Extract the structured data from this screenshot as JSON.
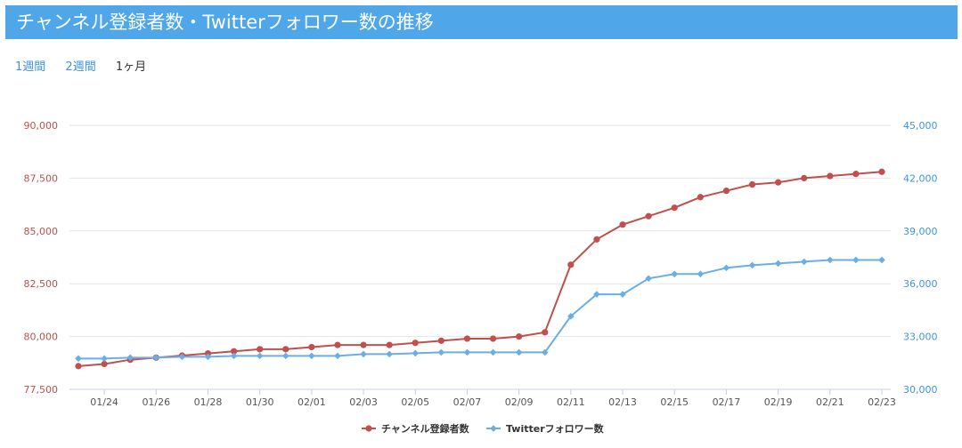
{
  "header": {
    "title": "チャンネル登録者数・Twitterフォロワー数の推移"
  },
  "tabs": [
    {
      "label": "1週間",
      "active": false
    },
    {
      "label": "2週間",
      "active": false
    },
    {
      "label": "1ヶ月",
      "active": true
    }
  ],
  "colors": {
    "header_bg": "#4fa7ea",
    "subscribers": "#c0504d",
    "followers": "#6aaee6",
    "link": "#3f95de"
  },
  "chart_data": {
    "type": "line",
    "x": [
      "01/23",
      "01/24",
      "01/25",
      "01/26",
      "01/27",
      "01/28",
      "01/29",
      "01/30",
      "01/31",
      "02/01",
      "02/02",
      "02/03",
      "02/04",
      "02/05",
      "02/06",
      "02/07",
      "02/08",
      "02/09",
      "02/10",
      "02/11",
      "02/12",
      "02/13",
      "02/14",
      "02/15",
      "02/16",
      "02/17",
      "02/18",
      "02/19",
      "02/20",
      "02/21",
      "02/22",
      "02/23"
    ],
    "x_tick_labels": [
      "01/24",
      "01/26",
      "01/28",
      "01/30",
      "02/01",
      "02/03",
      "02/05",
      "02/07",
      "02/09",
      "02/11",
      "02/13",
      "02/15",
      "02/17",
      "02/19",
      "02/21",
      "02/23"
    ],
    "series": [
      {
        "name": "チャンネル登録者数",
        "axis": "left",
        "marker": "circle",
        "color": "#c0504d",
        "values": [
          78600,
          78700,
          78900,
          79000,
          79100,
          79200,
          79300,
          79400,
          79400,
          79500,
          79600,
          79600,
          79600,
          79700,
          79800,
          79900,
          79900,
          80000,
          80200,
          83400,
          84600,
          85300,
          85700,
          86100,
          86600,
          86900,
          87200,
          87300,
          87500,
          87600,
          87700,
          87800
        ]
      },
      {
        "name": "Twitterフォロワー数",
        "axis": "right",
        "marker": "diamond",
        "color": "#6aaee6",
        "values": [
          31750,
          31750,
          31800,
          31800,
          31850,
          31850,
          31900,
          31900,
          31900,
          31900,
          31900,
          32000,
          32000,
          32050,
          32100,
          32100,
          32100,
          32100,
          32100,
          34150,
          35400,
          35400,
          36300,
          36550,
          36550,
          36900,
          37050,
          37150,
          37250,
          37350,
          37350,
          37350
        ]
      }
    ],
    "y_left": {
      "range": [
        77500,
        90000
      ],
      "ticks": [
        "77,500",
        "80,000",
        "82,500",
        "85,000",
        "87,500",
        "90,000"
      ]
    },
    "y_right": {
      "range": [
        30000,
        45000
      ],
      "ticks": [
        "30,000",
        "33,000",
        "36,000",
        "39,000",
        "42,000",
        "45,000"
      ]
    },
    "grid": true,
    "legend": "bottom-center"
  }
}
